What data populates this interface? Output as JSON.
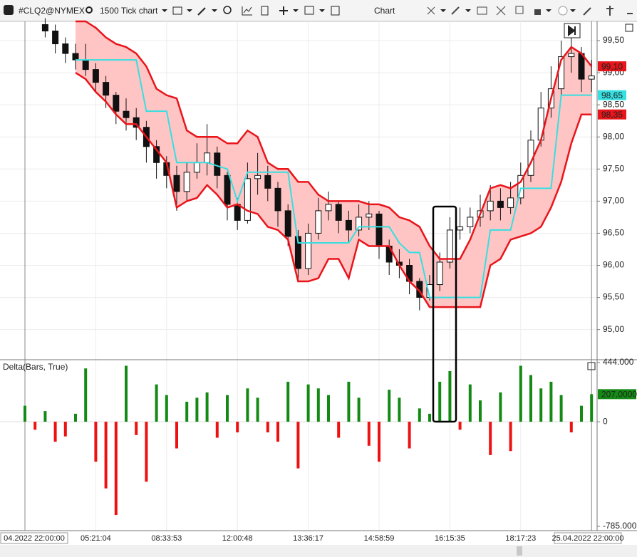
{
  "toolbar": {
    "symbol": "#CLQ2@NYMEX",
    "interval": "1500 Tick chart",
    "center": "Chart"
  },
  "chart_data": [
    {
      "type": "candlestick",
      "categories": [
        "04.2022 22:00:00",
        null,
        null,
        null,
        null,
        null,
        null,
        "05:21:04",
        null,
        null,
        null,
        null,
        null,
        null,
        "08:33:53",
        null,
        null,
        null,
        null,
        null,
        null,
        "12:00:48",
        null,
        null,
        null,
        null,
        null,
        null,
        "13:36:17",
        null,
        null,
        null,
        null,
        null,
        null,
        "14:58:59",
        null,
        null,
        null,
        null,
        null,
        null,
        "16:15:35",
        null,
        null,
        null,
        null,
        null,
        null,
        "18:17:23",
        null,
        null,
        null,
        null,
        null,
        null,
        "25.04.2022 22:00:00"
      ],
      "open": [
        null,
        null,
        99.75,
        99.65,
        99.45,
        99.3,
        99.2,
        99.05,
        98.85,
        98.65,
        98.4,
        98.3,
        98.15,
        97.85,
        97.6,
        97.4,
        97.15,
        97.45,
        97.6,
        97.75,
        97.4,
        96.95,
        96.7,
        97.35,
        97.4,
        97.2,
        96.85,
        96.45,
        95.95,
        96.5,
        96.85,
        96.95,
        96.7,
        96.55,
        96.75,
        96.8,
        96.3,
        96.05,
        96.0,
        95.75,
        95.5,
        95.7,
        96.05,
        96.55,
        96.6,
        96.75,
        96.85,
        97.0,
        96.9,
        97.05,
        97.4,
        97.95,
        98.45,
        98.75,
        99.25,
        99.3,
        98.9
      ],
      "high": [
        null,
        null,
        99.85,
        99.75,
        99.55,
        99.45,
        99.45,
        99.15,
        98.95,
        98.7,
        98.6,
        98.45,
        98.25,
        97.95,
        97.7,
        97.55,
        97.6,
        97.9,
        98.2,
        97.85,
        97.45,
        97.05,
        97.6,
        97.75,
        97.55,
        97.3,
        96.95,
        96.55,
        96.65,
        97.05,
        97.15,
        97.0,
        96.85,
        96.95,
        97.0,
        96.85,
        96.4,
        96.25,
        96.1,
        95.8,
        95.85,
        96.2,
        96.75,
        96.9,
        96.9,
        97.1,
        97.25,
        97.2,
        97.3,
        97.6,
        98.1,
        98.7,
        99.1,
        99.5,
        99.6,
        99.4,
        99.2
      ],
      "low": [
        null,
        null,
        99.55,
        99.3,
        99.15,
        99.05,
        98.95,
        98.7,
        98.45,
        98.2,
        98.1,
        97.95,
        97.6,
        97.35,
        97.2,
        96.85,
        97.0,
        97.35,
        97.4,
        97.2,
        96.7,
        96.55,
        96.65,
        97.1,
        97.0,
        96.6,
        96.3,
        95.75,
        95.85,
        96.4,
        96.7,
        96.5,
        96.35,
        96.45,
        96.55,
        96.1,
        95.85,
        95.8,
        95.55,
        95.3,
        95.45,
        95.6,
        95.95,
        96.4,
        96.5,
        96.6,
        96.7,
        96.7,
        96.8,
        96.95,
        97.3,
        97.85,
        98.3,
        98.6,
        99.0,
        98.7,
        98.7
      ],
      "close": [
        null,
        null,
        99.65,
        99.45,
        99.3,
        99.2,
        99.05,
        98.85,
        98.65,
        98.4,
        98.3,
        98.15,
        97.85,
        97.6,
        97.4,
        97.15,
        97.45,
        97.6,
        97.75,
        97.4,
        96.95,
        96.7,
        97.35,
        97.4,
        97.2,
        96.85,
        96.45,
        95.95,
        96.5,
        96.85,
        96.95,
        96.7,
        96.55,
        96.75,
        96.8,
        96.3,
        96.05,
        96.0,
        95.75,
        95.5,
        95.7,
        96.05,
        96.55,
        96.6,
        96.75,
        96.85,
        97.0,
        96.9,
        97.05,
        97.4,
        97.95,
        98.45,
        98.75,
        99.25,
        99.3,
        98.9,
        98.95
      ],
      "series": [
        {
          "color": "#e8151b",
          "values": [
            null,
            null,
            null,
            null,
            null,
            99.8,
            99.8,
            99.7,
            99.55,
            99.45,
            99.4,
            99.3,
            99.1,
            98.75,
            98.65,
            98.6,
            98.1,
            98.0,
            98.0,
            98.0,
            97.9,
            97.9,
            98.1,
            98.0,
            97.6,
            97.5,
            97.5,
            97.3,
            97.3,
            97.1,
            97.0,
            97.0,
            97.0,
            97.0,
            96.95,
            96.95,
            96.9,
            96.75,
            96.7,
            96.6,
            96.3,
            96.1,
            96.1,
            96.1,
            96.4,
            96.8,
            97.2,
            97.25,
            97.2,
            97.3,
            97.6,
            97.95,
            98.6,
            99.2,
            99.4,
            99.3,
            99.1
          ]
        },
        {
          "color": "#36dfe0",
          "values": [
            null,
            null,
            null,
            null,
            null,
            99.2,
            99.2,
            99.2,
            99.2,
            99.2,
            99.2,
            99.2,
            98.4,
            98.4,
            98.4,
            97.6,
            97.6,
            97.6,
            97.6,
            97.55,
            97.5,
            97.0,
            97.45,
            97.45,
            97.45,
            97.45,
            97.45,
            96.35,
            96.35,
            96.35,
            96.35,
            96.35,
            96.35,
            96.6,
            96.6,
            96.6,
            96.6,
            96.35,
            96.2,
            96.2,
            95.5,
            95.5,
            95.5,
            95.5,
            95.5,
            95.5,
            96.55,
            96.55,
            96.55,
            97.2,
            97.2,
            97.2,
            97.2,
            98.65,
            98.65,
            98.65,
            98.65
          ]
        },
        {
          "color": "#e8151b",
          "values": [
            null,
            null,
            null,
            null,
            null,
            99.0,
            98.9,
            98.7,
            98.55,
            98.35,
            98.2,
            98.2,
            98.0,
            97.8,
            97.6,
            96.9,
            97.0,
            97.05,
            97.25,
            97.1,
            96.9,
            96.95,
            96.85,
            96.8,
            96.6,
            96.55,
            96.4,
            95.75,
            95.75,
            95.8,
            96.1,
            96.1,
            95.8,
            96.4,
            96.3,
            96.3,
            96.3,
            96.0,
            95.75,
            95.6,
            95.35,
            95.35,
            95.35,
            95.35,
            95.35,
            95.35,
            96.0,
            96.1,
            96.4,
            96.45,
            96.5,
            96.6,
            96.9,
            97.3,
            97.9,
            98.35,
            98.35
          ]
        }
      ],
      "band_color": "#ffc5c5",
      "price_markers": [
        {
          "value": 99.1,
          "label": "99,10",
          "color": "#e8151b"
        },
        {
          "value": 98.65,
          "label": "98,65",
          "color": "#36dfe0"
        },
        {
          "value": 98.35,
          "label": "98,35",
          "color": "#e8151b"
        }
      ],
      "ylim": [
        94.53,
        99.8
      ],
      "yticks": [
        {
          "value": 95.0,
          "label": "95,00"
        },
        {
          "value": 95.5,
          "label": "95,50"
        },
        {
          "value": 96.0,
          "label": "96,00"
        },
        {
          "value": 96.5,
          "label": "96,50"
        },
        {
          "value": 97.0,
          "label": "97,00"
        },
        {
          "value": 97.5,
          "label": "97,50"
        },
        {
          "value": 98.0,
          "label": "98,00"
        },
        {
          "value": 98.5,
          "label": "98,50"
        },
        {
          "value": 99.0,
          "label": "99,00"
        },
        {
          "value": 99.5,
          "label": "99,50"
        }
      ],
      "grid": true
    },
    {
      "type": "bar",
      "title": "Delta(Bars, True)",
      "values": [
        120,
        -60,
        80,
        -150,
        -110,
        60,
        400,
        -300,
        -500,
        -700,
        420,
        -100,
        -450,
        280,
        200,
        -200,
        150,
        180,
        220,
        -120,
        200,
        -80,
        250,
        180,
        -80,
        -150,
        300,
        -350,
        280,
        250,
        200,
        -120,
        300,
        180,
        -180,
        -300,
        240,
        180,
        -200,
        100,
        60,
        300,
        380,
        -60,
        280,
        160,
        -250,
        220,
        -220,
        420,
        350,
        250,
        300,
        200,
        -80,
        120,
        207
      ],
      "positive_color": "#138a13",
      "negative_color": "#ee1111",
      "marker": {
        "value": 207,
        "label": "207.0000"
      },
      "ylim": [
        -785,
        444
      ],
      "yticks": [
        {
          "value": 444,
          "label": "444.000"
        },
        0,
        {
          "value": -785,
          "label": "-785.000"
        }
      ]
    }
  ]
}
